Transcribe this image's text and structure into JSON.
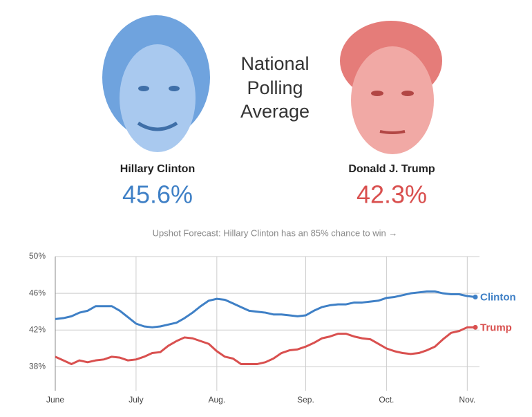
{
  "header": {
    "title": [
      "National",
      "Polling",
      "Average"
    ],
    "candidates": [
      {
        "name": "Hillary Clinton",
        "share": "45.6%",
        "color": "#3f80c6"
      },
      {
        "name": "Donald J. Trump",
        "share": "42.3%",
        "color": "#d9504f"
      }
    ],
    "link": "Upshot Forecast: Hillary Clinton has an 85% chance to win →"
  },
  "chart_data": {
    "type": "line",
    "categories": [
      "June",
      null,
      null,
      null,
      null,
      null,
      null,
      null,
      null,
      null,
      "July",
      null,
      null,
      null,
      null,
      null,
      null,
      null,
      null,
      null,
      "Aug.",
      null,
      null,
      null,
      null,
      null,
      null,
      null,
      null,
      null,
      null,
      "Sep.",
      null,
      null,
      null,
      null,
      null,
      null,
      null,
      null,
      null,
      "Oct.",
      null,
      null,
      null,
      null,
      null,
      null,
      null,
      null,
      null,
      "Nov.",
      null
    ],
    "series": [
      {
        "name": "Clinton",
        "color": "#3f80c6",
        "values": [
          43.2,
          43.3,
          43.5,
          43.9,
          44.1,
          44.6,
          44.6,
          44.6,
          44.1,
          43.4,
          42.7,
          42.4,
          42.3,
          42.4,
          42.6,
          42.8,
          43.3,
          43.9,
          44.6,
          45.2,
          45.4,
          45.3,
          44.9,
          44.5,
          44.1,
          44.0,
          43.9,
          43.7,
          43.7,
          43.6,
          43.5,
          43.6,
          44.1,
          44.5,
          44.7,
          44.8,
          44.8,
          45.0,
          45.0,
          45.1,
          45.2,
          45.5,
          45.6,
          45.8,
          46.0,
          46.1,
          46.2,
          46.2,
          46.0,
          45.9,
          45.9,
          45.7,
          45.6
        ]
      },
      {
        "name": "Trump",
        "color": "#d9504f",
        "values": [
          39.1,
          38.7,
          38.3,
          38.7,
          38.5,
          38.7,
          38.8,
          39.1,
          39.0,
          38.7,
          38.8,
          39.1,
          39.5,
          39.6,
          40.3,
          40.8,
          41.2,
          41.1,
          40.8,
          40.5,
          39.7,
          39.1,
          38.9,
          38.3,
          38.3,
          38.3,
          38.5,
          38.9,
          39.5,
          39.8,
          39.9,
          40.2,
          40.6,
          41.1,
          41.3,
          41.6,
          41.6,
          41.3,
          41.1,
          41.0,
          40.5,
          40.0,
          39.7,
          39.5,
          39.4,
          39.5,
          39.8,
          40.2,
          41.0,
          41.7,
          41.9,
          42.3,
          42.3
        ]
      }
    ],
    "ylim": [
      35.4,
      50
    ],
    "yticks": [
      {
        "value": 38,
        "label": "38%"
      },
      {
        "value": 42,
        "label": "42%"
      },
      {
        "value": 46,
        "label": "46%"
      },
      {
        "value": 50,
        "label": "50%"
      }
    ],
    "grid": true
  }
}
